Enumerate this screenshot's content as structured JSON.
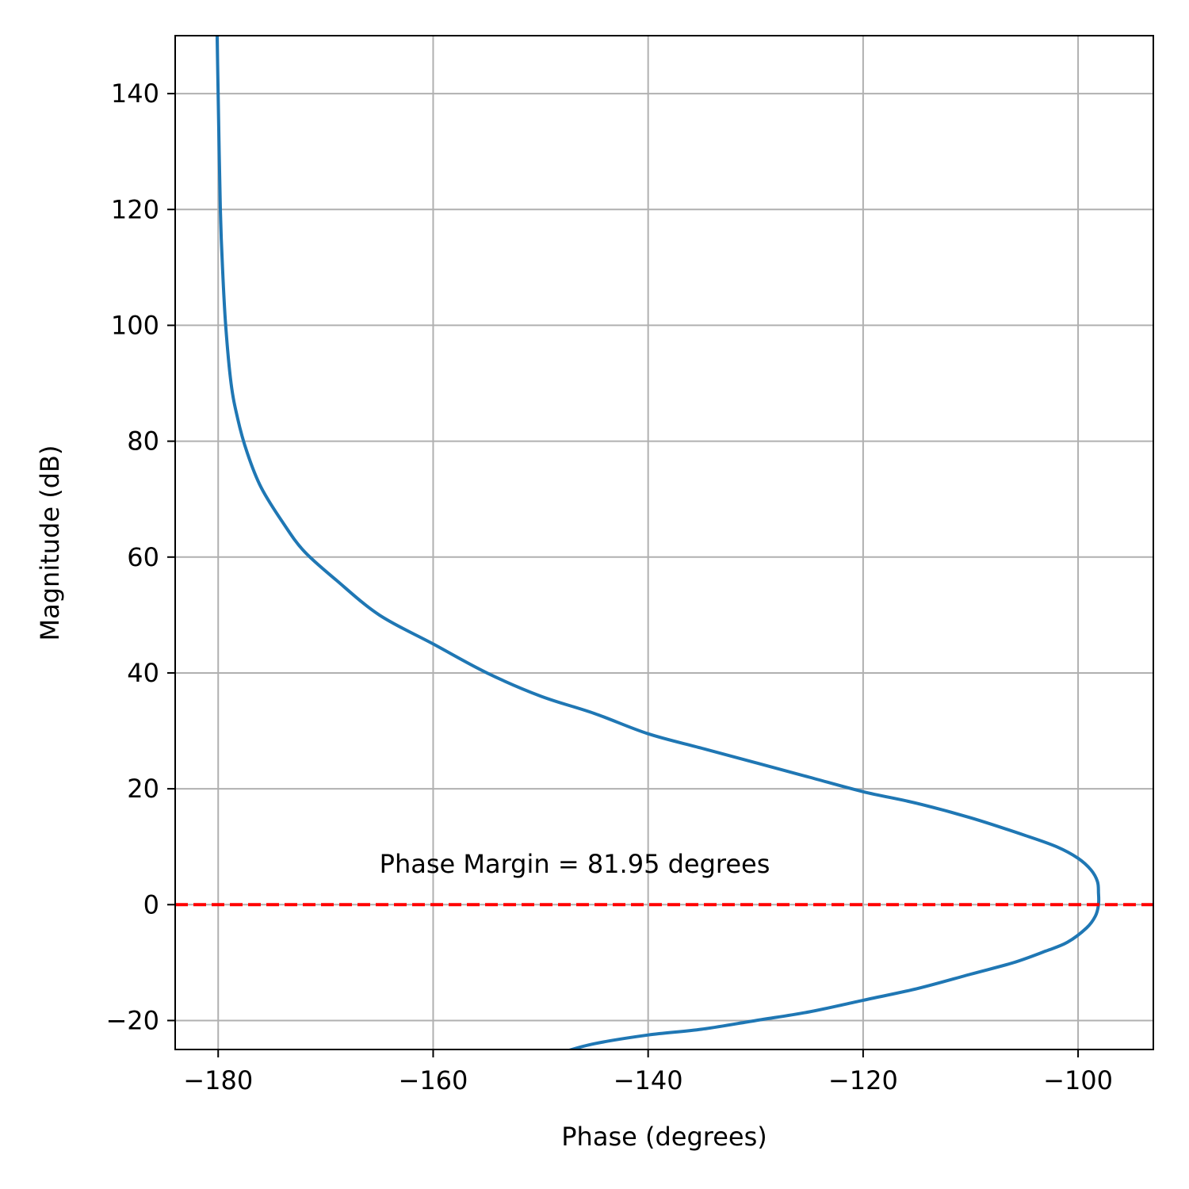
{
  "chart_data": {
    "type": "line",
    "title": "",
    "xlabel": "Phase (degrees)",
    "ylabel": "Magnitude (dB)",
    "xlim": [
      -184,
      -93
    ],
    "ylim": [
      -25,
      150
    ],
    "xticks": [
      -180,
      -160,
      -140,
      -120,
      -100
    ],
    "yticks": [
      -20,
      0,
      20,
      40,
      60,
      80,
      100,
      120,
      140
    ],
    "xtick_labels": [
      "−180",
      "−160",
      "−140",
      "−120",
      "−100"
    ],
    "ytick_labels": [
      "−20",
      "0",
      "20",
      "40",
      "60",
      "80",
      "100",
      "120",
      "140"
    ],
    "grid": true,
    "series": [
      {
        "color": "#1f77b4",
        "style": "solid",
        "x": [
          -180.1,
          -180.0,
          -179.8,
          -179.6,
          -179.3,
          -178.8,
          -178.2,
          -177.3,
          -176.0,
          -174.0,
          -172.0,
          -169.0,
          -165.0,
          -160.0,
          -155.0,
          -150.0,
          -145.0,
          -140.0,
          -135.0,
          -130.0,
          -125.0,
          -120.0,
          -115.0,
          -110.0,
          -105.0,
          -102.0,
          -100.0,
          -98.8,
          -98.2,
          -98.1,
          -98.1,
          -98.4,
          -99.2,
          -101.0,
          -103.0,
          -106.0,
          -110.0,
          -115.0,
          -120.0,
          -125.0,
          -130.0,
          -135.0,
          -140.0,
          -145.0,
          -148.0
        ],
        "y": [
          150,
          140,
          120,
          110,
          100,
          90,
          84,
          78,
          72,
          66,
          61,
          56,
          50,
          45,
          40,
          36,
          33,
          29.5,
          27,
          24.5,
          22,
          19.5,
          17.5,
          15,
          12,
          10,
          8,
          6,
          4,
          2,
          0,
          -2,
          -4,
          -6.5,
          -8,
          -10,
          -12,
          -14.5,
          -16.5,
          -18.5,
          -20,
          -21.5,
          -22.5,
          -24,
          -25.5
        ]
      },
      {
        "color": "#ff0000",
        "style": "dashed",
        "x": [
          -184,
          -93
        ],
        "y": [
          0,
          0
        ]
      }
    ],
    "annotations": [
      {
        "text": "Phase Margin = 81.95 degrees",
        "x": -165,
        "y": 5.5
      }
    ]
  }
}
